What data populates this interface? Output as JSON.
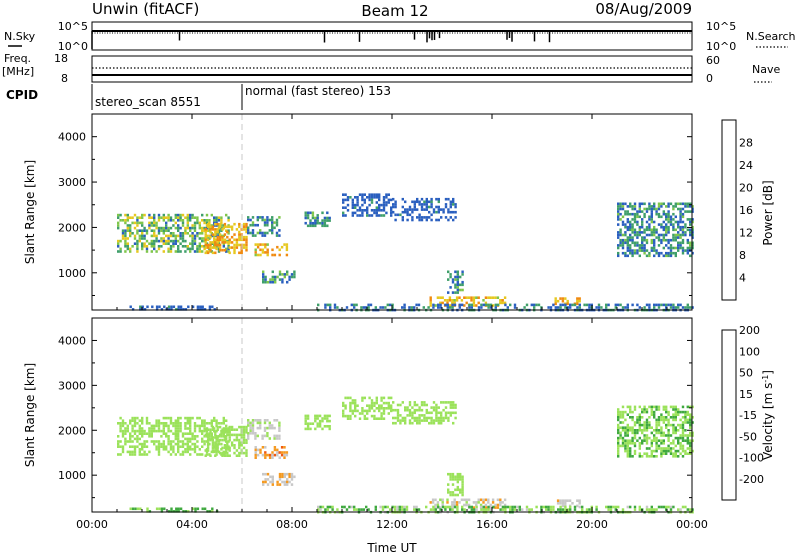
{
  "header": {
    "station": "Unwin (fitACF)",
    "beam": "Beam 12",
    "date": "08/Aug/2009"
  },
  "sidebar": {
    "nsky_label": "N.Sky",
    "nsearch_label": "N.Search",
    "freq_label": "Freq.",
    "mhz_label": "[MHz]",
    "nave_label": "Nave",
    "cpid_label": "CPID"
  },
  "scales": {
    "noise_top_left": "10^5",
    "noise_bottom_left": "10^0",
    "noise_top_right": "10^5",
    "noise_bottom_right": "10^0",
    "freq_top": "18",
    "freq_bottom": "8",
    "nave_top": "60",
    "nave_bottom": "0"
  },
  "cpid": [
    {
      "label": "stereo_scan 8551",
      "start_hour": 0
    },
    {
      "label": "normal (fast stereo) 153",
      "start_hour": 6
    }
  ],
  "colors": {
    "power": [
      "#1f2ee0",
      "#2a5fbf",
      "#3f9f6a",
      "#7fc64a",
      "#e6c820",
      "#f08a10",
      "#e84510",
      "#e01010"
    ],
    "velocity": [
      "#e81010",
      "#f05a10",
      "#f59a20",
      "#c8c8c8",
      "#9be25a",
      "#3fa93f",
      "#2a6fa0",
      "#1f2ec8"
    ],
    "guide": "#c8c8c8"
  },
  "chart_data": [
    {
      "type": "heatmap",
      "panel": "power",
      "xlabel": "Time UT",
      "ylabel": "Slant Range [km]",
      "xlim": [
        0,
        24
      ],
      "ylim": [
        180,
        4500
      ],
      "yticks": [
        "1000",
        "2000",
        "3000",
        "4000"
      ],
      "xticks": [
        "00:00",
        "04:00",
        "08:00",
        "12:00",
        "16:00",
        "20:00",
        "00:00"
      ],
      "colorbar": {
        "label": "Power [dB]",
        "ticks": [
          "4",
          "8",
          "12",
          "16",
          "20",
          "24",
          "28"
        ],
        "range": [
          0,
          30
        ]
      },
      "regions": [
        {
          "t": [
            1.0,
            5.5
          ],
          "r": [
            1450,
            2300
          ],
          "v": [
            6,
            18
          ]
        },
        {
          "t": [
            4.5,
            6.2
          ],
          "r": [
            1450,
            2100
          ],
          "v": [
            16,
            22
          ]
        },
        {
          "t": [
            6.2,
            7.5
          ],
          "r": [
            1800,
            2250
          ],
          "v": [
            4,
            12
          ]
        },
        {
          "t": [
            6.5,
            7.8
          ],
          "r": [
            1400,
            1650
          ],
          "v": [
            14,
            21
          ]
        },
        {
          "t": [
            6.8,
            8.1
          ],
          "r": [
            800,
            1050
          ],
          "v": [
            6,
            14
          ]
        },
        {
          "t": [
            8.5,
            9.5
          ],
          "r": [
            2050,
            2350
          ],
          "v": [
            4,
            12
          ]
        },
        {
          "t": [
            10.0,
            12.0
          ],
          "r": [
            2250,
            2750
          ],
          "v": [
            4,
            8
          ]
        },
        {
          "t": [
            12.0,
            14.5
          ],
          "r": [
            2150,
            2650
          ],
          "v": [
            4,
            8
          ]
        },
        {
          "t": [
            14.2,
            14.8
          ],
          "r": [
            550,
            1050
          ],
          "v": [
            4,
            12
          ]
        },
        {
          "t": [
            13.5,
            16.5
          ],
          "r": [
            300,
            480
          ],
          "v": [
            14,
            22
          ]
        },
        {
          "t": [
            18.5,
            19.5
          ],
          "r": [
            320,
            460
          ],
          "v": [
            16,
            22
          ]
        },
        {
          "t": [
            21.0,
            24.0
          ],
          "r": [
            1400,
            2550
          ],
          "v": [
            4,
            12
          ]
        },
        {
          "t": [
            9.0,
            24.0
          ],
          "r": [
            190,
            320
          ],
          "v": [
            4,
            10
          ]
        },
        {
          "t": [
            1.5,
            5.0
          ],
          "r": [
            190,
            280
          ],
          "v": [
            4,
            8
          ]
        }
      ]
    },
    {
      "type": "heatmap",
      "panel": "velocity",
      "xlabel": "Time UT",
      "ylabel": "Slant Range [km]",
      "xlim": [
        0,
        24
      ],
      "ylim": [
        180,
        4500
      ],
      "yticks": [
        "1000",
        "2000",
        "3000",
        "4000"
      ],
      "xticks": [
        "00:00",
        "04:00",
        "08:00",
        "12:00",
        "16:00",
        "20:00",
        "00:00"
      ],
      "colorbar": {
        "label": "Velocity [m s^-1]",
        "ticks": [
          "-200",
          "-100",
          "-50",
          "-15",
          "15",
          "50",
          "100",
          "200"
        ]
      },
      "regions": [
        {
          "t": [
            1.0,
            5.5
          ],
          "r": [
            1450,
            2300
          ],
          "v": [
            -10,
            10
          ]
        },
        {
          "t": [
            4.5,
            6.2
          ],
          "r": [
            1450,
            2100
          ],
          "v": [
            -10,
            10
          ]
        },
        {
          "t": [
            6.2,
            7.5
          ],
          "r": [
            1800,
            2250
          ],
          "v": [
            -40,
            0
          ]
        },
        {
          "t": [
            6.5,
            7.8
          ],
          "r": [
            1400,
            1650
          ],
          "v": [
            -110,
            -30
          ]
        },
        {
          "t": [
            6.8,
            8.1
          ],
          "r": [
            800,
            1050
          ],
          "v": [
            -60,
            -20
          ]
        },
        {
          "t": [
            8.5,
            9.5
          ],
          "r": [
            2050,
            2350
          ],
          "v": [
            -10,
            10
          ]
        },
        {
          "t": [
            10.0,
            12.0
          ],
          "r": [
            2250,
            2750
          ],
          "v": [
            -10,
            10
          ]
        },
        {
          "t": [
            12.0,
            14.5
          ],
          "r": [
            2150,
            2650
          ],
          "v": [
            -10,
            10
          ]
        },
        {
          "t": [
            14.2,
            14.8
          ],
          "r": [
            550,
            1050
          ],
          "v": [
            -10,
            10
          ]
        },
        {
          "t": [
            13.5,
            16.5
          ],
          "r": [
            300,
            480
          ],
          "v": [
            -60,
            -10
          ]
        },
        {
          "t": [
            18.5,
            19.5
          ],
          "r": [
            320,
            460
          ],
          "v": [
            -60,
            -20
          ]
        },
        {
          "t": [
            21.0,
            24.0
          ],
          "r": [
            1400,
            2550
          ],
          "v": [
            -10,
            30
          ]
        },
        {
          "t": [
            9.0,
            24.0
          ],
          "r": [
            190,
            320
          ],
          "v": [
            -20,
            40
          ]
        },
        {
          "t": [
            1.5,
            5.0
          ],
          "r": [
            190,
            280
          ],
          "v": [
            10,
            40
          ]
        }
      ]
    }
  ]
}
